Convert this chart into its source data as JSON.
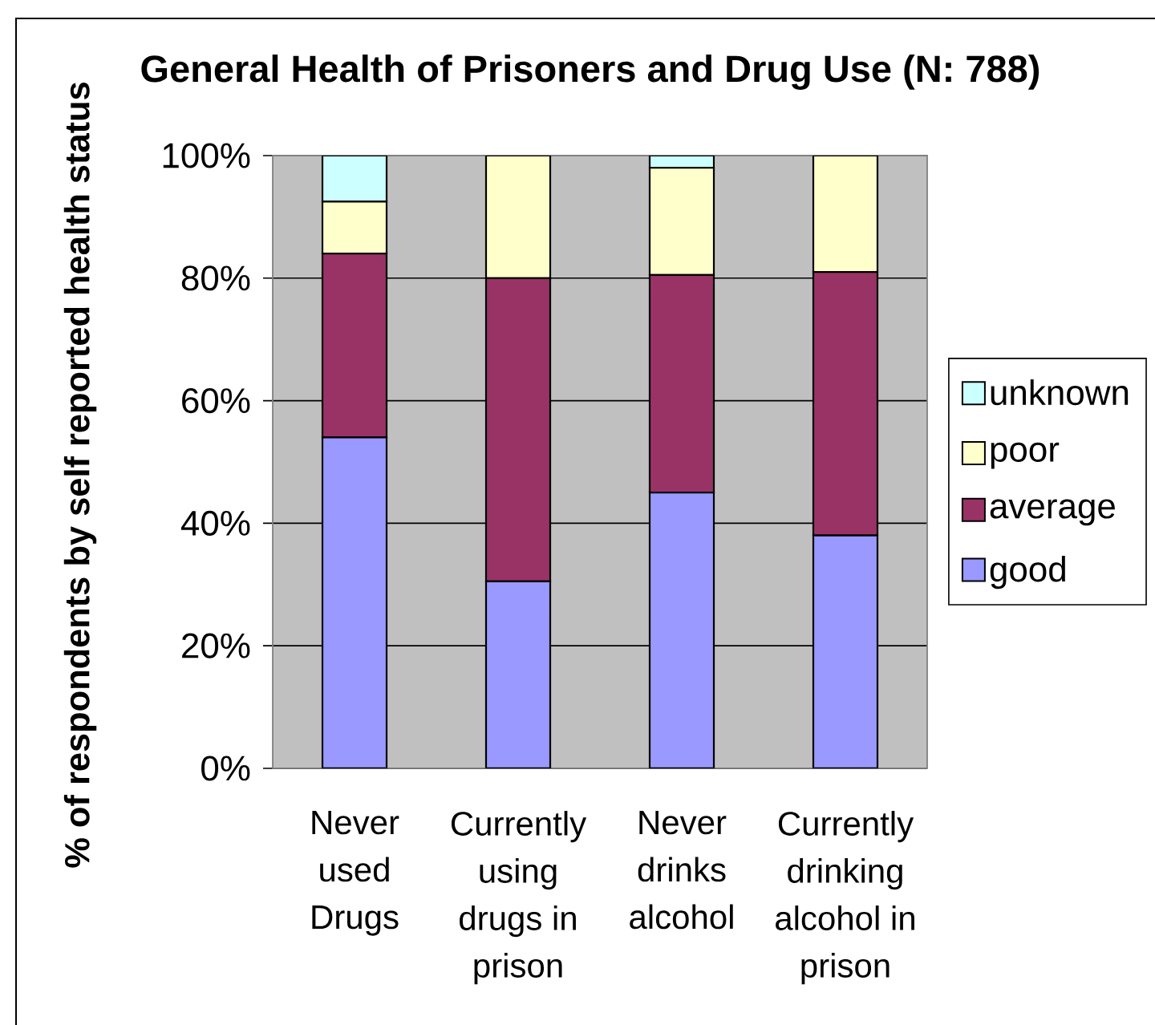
{
  "chart_data": {
    "type": "bar",
    "stacked": true,
    "title": "General Health of Prisoners and Drug Use (N: 788)",
    "ylabel": "% of respondents by self reported health status",
    "categories": [
      "Never used Drugs",
      "Currently using drugs in prison",
      "Never drinks alcohol",
      "Currently drinking alcohol in prison"
    ],
    "series": [
      {
        "name": "good",
        "color": "#9999ff",
        "values": [
          54,
          30.5,
          45,
          38
        ]
      },
      {
        "name": "average",
        "color": "#993366",
        "values": [
          30,
          49.5,
          35.5,
          43
        ]
      },
      {
        "name": "poor",
        "color": "#ffffcc",
        "values": [
          8.5,
          20,
          17.5,
          19
        ]
      },
      {
        "name": "unknown",
        "color": "#ccffff",
        "values": [
          7.5,
          0,
          2,
          0
        ]
      }
    ],
    "ylim": [
      0,
      100
    ],
    "yticks": [
      {
        "value": 0,
        "label": "0%"
      },
      {
        "value": 20,
        "label": "20%"
      },
      {
        "value": 40,
        "label": "40%"
      },
      {
        "value": 60,
        "label": "60%"
      },
      {
        "value": 80,
        "label": "80%"
      },
      {
        "value": 100,
        "label": "100%"
      }
    ],
    "grid": "y",
    "legend": "right"
  }
}
